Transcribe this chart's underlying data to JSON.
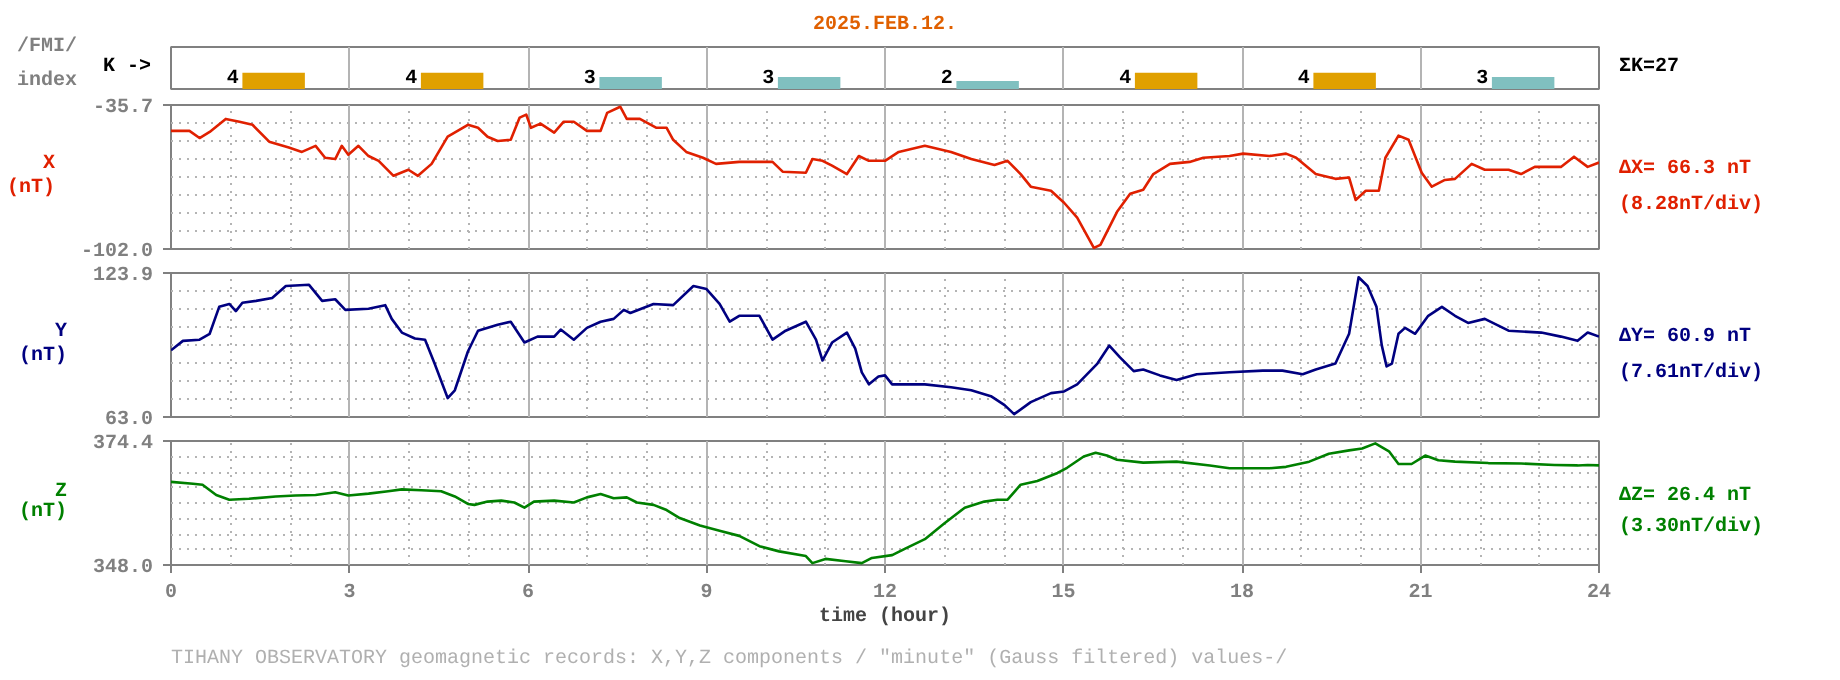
{
  "chart_data": [
    {
      "type": "bar",
      "title": "2025.FEB.12.",
      "ylabel": "K ->",
      "annotations": [
        "/FMI/",
        "index",
        "ΣK=27"
      ],
      "categories": [
        null,
        null,
        null,
        null,
        null,
        null,
        null,
        null
      ],
      "values": [
        4,
        4,
        3,
        3,
        2,
        4,
        4,
        3
      ],
      "colors": [
        "#e0a000",
        "#e0a000",
        "#80c0c0",
        "#80c0c0",
        "#80c0c0",
        "#e0a000",
        "#e0a000",
        "#80c0c0"
      ],
      "data_labels": true,
      "tick_labels": false
    },
    {
      "type": "line",
      "ylabel": "X (nT)",
      "annotations": [
        "ΔX= 66.3 nT",
        "(8.28nT/div)"
      ],
      "xlim": [
        0,
        24
      ],
      "xticks": [
        0,
        3,
        6,
        9,
        12,
        15,
        18,
        21,
        24
      ],
      "ylim": [
        -102.0,
        -35.7
      ],
      "yticks": [
        -35.7,
        {
          "value": -102.0,
          "label": "-102.0"
        }
      ],
      "grid": true,
      "tick_labels": "y",
      "series": [
        {
          "color": "#e02000",
          "x": [
            0,
            0.31,
            0.48,
            0.65,
            0.92,
            1.15,
            1.37,
            1.65,
            1.98,
            2.2,
            2.43,
            2.59,
            2.76,
            2.87,
            2.98,
            3.15,
            3.32,
            3.49,
            3.74,
            3.99,
            4.15,
            4.38,
            4.65,
            4.99,
            5.16,
            5.32,
            5.49,
            5.71,
            5.86,
            5.97,
            6.05,
            6.21,
            6.44,
            6.6,
            6.77,
            6.99,
            7.22,
            7.33,
            7.55,
            7.66,
            7.88,
            8.16,
            8.33,
            8.44,
            8.66,
            8.94,
            9.16,
            9.55,
            10.11,
            10.28,
            10.67,
            10.78,
            10.95,
            11.11,
            11.36,
            11.56,
            11.73,
            12.0,
            12.23,
            12.67,
            13.11,
            13.45,
            13.84,
            14.06,
            14.28,
            14.45,
            14.79,
            15.01,
            15.23,
            15.51,
            15.62,
            15.9,
            16.12,
            16.34,
            16.51,
            16.79,
            17.12,
            17.35,
            17.79,
            18.02,
            18.46,
            18.74,
            18.91,
            19.24,
            19.57,
            19.8,
            19.91,
            20.08,
            20.3,
            20.41,
            20.63,
            20.8,
            21.02,
            21.19,
            21.41,
            21.58,
            21.86,
            22.08,
            22.48,
            22.69,
            22.92,
            23.36,
            23.58,
            23.81,
            24.0
          ],
          "values": [
            -47.6,
            -47.6,
            -50.9,
            -48.1,
            -42.1,
            -43.4,
            -44.8,
            -52.6,
            -55.3,
            -57.3,
            -54.5,
            -60.0,
            -60.6,
            -54.5,
            -58.6,
            -54.5,
            -59.2,
            -61.4,
            -68.3,
            -65.5,
            -68.3,
            -62.8,
            -50.3,
            -44.8,
            -46.2,
            -50.3,
            -52.3,
            -51.7,
            -41.5,
            -40.1,
            -46.2,
            -44.3,
            -48.4,
            -43.4,
            -43.4,
            -47.6,
            -47.6,
            -39.3,
            -36.5,
            -42.1,
            -42.1,
            -46.2,
            -46.2,
            -51.7,
            -57.3,
            -60.0,
            -62.8,
            -61.9,
            -61.9,
            -66.4,
            -66.9,
            -60.6,
            -61.4,
            -63.6,
            -67.5,
            -59.2,
            -61.4,
            -61.4,
            -57.3,
            -54.5,
            -57.3,
            -60.6,
            -63.3,
            -61.4,
            -67.5,
            -73.3,
            -75.2,
            -80.7,
            -87.6,
            -101.5,
            -100.1,
            -84.9,
            -76.6,
            -74.7,
            -67.5,
            -62.8,
            -61.9,
            -60.0,
            -59.2,
            -58.1,
            -59.2,
            -58.1,
            -60.0,
            -67.5,
            -69.7,
            -69.1,
            -79.4,
            -75.2,
            -75.2,
            -60.0,
            -49.8,
            -51.7,
            -66.9,
            -73.3,
            -70.2,
            -69.7,
            -62.8,
            -65.5,
            -65.5,
            -67.5,
            -64.2,
            -64.2,
            -59.5,
            -64.2,
            -62.2
          ]
        }
      ]
    },
    {
      "type": "line",
      "ylabel": "Y (nT)",
      "annotations": [
        "ΔY= 60.9 nT",
        "(7.61nT/div)"
      ],
      "xlim": [
        0,
        24
      ],
      "xticks": [
        0,
        3,
        6,
        9,
        12,
        15,
        18,
        21,
        24
      ],
      "ylim": [
        63.0,
        123.9
      ],
      "yticks": [
        123.9,
        {
          "value": 63.0,
          "label": "63.0"
        }
      ],
      "grid": true,
      "tick_labels": "y",
      "series": [
        {
          "color": "#000080",
          "x": [
            0,
            0.2,
            0.48,
            0.65,
            0.81,
            0.98,
            1.09,
            1.2,
            1.43,
            1.7,
            1.93,
            2.32,
            2.54,
            2.76,
            2.93,
            3.32,
            3.6,
            3.71,
            3.88,
            4.1,
            4.27,
            4.43,
            4.65,
            4.77,
            4.99,
            5.16,
            5.49,
            5.71,
            5.94,
            6.16,
            6.44,
            6.55,
            6.77,
            6.99,
            7.22,
            7.44,
            7.61,
            7.72,
            8.11,
            8.44,
            8.78,
            9.0,
            9.22,
            9.39,
            9.55,
            9.89,
            10.11,
            10.33,
            10.67,
            10.84,
            10.95,
            11.11,
            11.36,
            11.5,
            11.61,
            11.73,
            11.89,
            12.0,
            12.12,
            12.67,
            13.11,
            13.45,
            13.78,
            14.01,
            14.17,
            14.45,
            14.79,
            15.01,
            15.23,
            15.57,
            15.77,
            15.95,
            16.18,
            16.34,
            16.62,
            16.9,
            17.24,
            17.79,
            18.35,
            18.68,
            19.02,
            19.24,
            19.57,
            19.8,
            19.96,
            20.11,
            20.26,
            20.35,
            20.43,
            20.52,
            20.63,
            20.74,
            20.91,
            21.13,
            21.36,
            21.58,
            21.8,
            22.08,
            22.48,
            23.03,
            23.36,
            23.64,
            23.81,
            24.0
          ],
          "values": [
            91.2,
            95.2,
            95.7,
            98.2,
            109.6,
            110.8,
            107.8,
            111.3,
            112.1,
            113.3,
            118.4,
            118.9,
            112.1,
            112.8,
            108.3,
            108.8,
            110.3,
            104.5,
            98.7,
            96.2,
            95.7,
            85.6,
            71.0,
            74.3,
            90.7,
            99.5,
            102.0,
            103.3,
            94.5,
            97.0,
            97.0,
            100.0,
            95.7,
            100.7,
            103.3,
            104.5,
            108.3,
            107.0,
            110.8,
            110.3,
            118.4,
            117.1,
            110.8,
            103.3,
            105.8,
            105.8,
            95.7,
            99.5,
            103.3,
            95.7,
            86.9,
            94.5,
            98.7,
            91.9,
            81.9,
            76.8,
            80.1,
            80.6,
            76.8,
            76.8,
            75.6,
            74.3,
            71.8,
            68.0,
            64.2,
            69.3,
            73.1,
            73.8,
            76.8,
            85.6,
            93.2,
            88.2,
            82.4,
            83.1,
            80.6,
            78.6,
            81.1,
            81.9,
            82.6,
            82.6,
            81.1,
            83.1,
            85.6,
            98.2,
            122.1,
            118.4,
            109.6,
            93.2,
            84.4,
            85.6,
            98.2,
            100.7,
            98.2,
            105.8,
            109.6,
            105.8,
            102.8,
            104.5,
            99.5,
            98.7,
            97.0,
            95.2,
            98.7,
            97.0
          ]
        }
      ]
    },
    {
      "type": "line",
      "ylabel": "Z (nT)",
      "xlabel": "time (hour)",
      "annotations": [
        "ΔZ= 26.4 nT",
        "(3.30nT/div)",
        "TIHANY OBSERVATORY   geomagnetic records:  X,Y,Z  components   / \"minute\" (Gauss filtered) values-/"
      ],
      "xlim": [
        0,
        24
      ],
      "xticks": [
        0,
        3,
        6,
        9,
        12,
        15,
        18,
        21,
        24
      ],
      "ylim": [
        348.0,
        374.4
      ],
      "yticks": [
        374.4,
        {
          "value": 348.0,
          "label": "348.0"
        }
      ],
      "grid": true,
      "series": [
        {
          "color": "#008000",
          "x": [
            0,
            0.37,
            0.53,
            0.76,
            0.98,
            1.31,
            1.76,
            2.09,
            2.43,
            2.76,
            2.98,
            3.32,
            3.65,
            3.88,
            4.21,
            4.54,
            4.77,
            4.99,
            5.1,
            5.32,
            5.55,
            5.77,
            5.94,
            6.1,
            6.44,
            6.77,
            6.99,
            7.22,
            7.44,
            7.66,
            7.83,
            8.11,
            8.33,
            8.55,
            8.89,
            9.22,
            9.55,
            9.89,
            10.22,
            10.67,
            10.78,
            11.0,
            11.34,
            11.61,
            11.78,
            12.12,
            12.34,
            12.67,
            13.0,
            13.34,
            13.67,
            13.89,
            14.06,
            14.28,
            14.56,
            14.9,
            15.06,
            15.34,
            15.54,
            15.73,
            15.9,
            16.34,
            16.9,
            17.46,
            17.79,
            18.46,
            18.74,
            19.13,
            19.46,
            19.8,
            20.02,
            20.24,
            20.47,
            20.63,
            20.85,
            21.08,
            21.3,
            21.58,
            22.14,
            22.69,
            23.25,
            23.64,
            23.81,
            24.0
          ],
          "values": [
            365.7,
            365.3,
            365.1,
            362.9,
            361.9,
            362.1,
            362.6,
            362.8,
            362.9,
            363.5,
            362.8,
            363.2,
            363.7,
            364.1,
            363.9,
            363.7,
            362.6,
            361.0,
            360.8,
            361.5,
            361.7,
            361.3,
            360.2,
            361.5,
            361.7,
            361.3,
            362.4,
            363.1,
            362.2,
            362.4,
            361.3,
            360.8,
            359.7,
            358.0,
            356.4,
            355.3,
            354.2,
            352.0,
            350.9,
            349.9,
            348.4,
            349.3,
            348.8,
            348.4,
            349.5,
            350.1,
            351.5,
            353.5,
            356.9,
            360.2,
            361.5,
            361.9,
            361.9,
            365.1,
            365.9,
            367.6,
            368.7,
            371.1,
            371.9,
            371.3,
            370.4,
            369.8,
            370.0,
            369.2,
            368.6,
            368.6,
            368.9,
            370.0,
            371.7,
            372.4,
            372.8,
            373.9,
            372.2,
            369.5,
            369.5,
            371.3,
            370.3,
            370.0,
            369.7,
            369.6,
            369.3,
            369.2,
            369.3,
            369.2
          ]
        }
      ]
    }
  ]
}
